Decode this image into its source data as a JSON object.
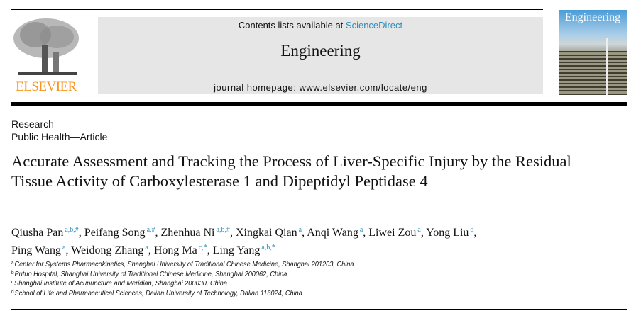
{
  "header": {
    "publisher_logo": "ELSEVIER",
    "contents_prefix": "Contents lists available at ",
    "contents_link": "ScienceDirect",
    "journal_name": "Engineering",
    "homepage": "journal homepage: www.elsevier.com/locate/eng",
    "cover_title": "Engineering",
    "link_color": "#2a8fbd",
    "logo_color": "#f7941d"
  },
  "article": {
    "section": "Research",
    "subsection": "Public Health—Article",
    "title": "Accurate Assessment and Tracking the Process of Liver-Specific Injury by the Residual Tissue Activity of Carboxylesterase 1 and Dipeptidyl Peptidase 4",
    "authors": [
      {
        "name": "Qiusha Pan",
        "aff": "a,b,#"
      },
      {
        "name": "Peifang Song",
        "aff": "a,#"
      },
      {
        "name": "Zhenhua Ni",
        "aff": "a,b,#"
      },
      {
        "name": "Xingkai Qian",
        "aff": "a"
      },
      {
        "name": "Anqi Wang",
        "aff": "a"
      },
      {
        "name": "Liwei Zou",
        "aff": "a"
      },
      {
        "name": "Yong Liu",
        "aff": "d"
      },
      {
        "name": "Ping Wang",
        "aff": "a"
      },
      {
        "name": "Weidong Zhang",
        "aff": "a"
      },
      {
        "name": "Hong Ma",
        "aff": "c,*"
      },
      {
        "name": "Ling Yang",
        "aff": "a,b,*"
      }
    ],
    "affiliations": [
      {
        "key": "a",
        "text": "Center for Systems Pharmacokinetics, Shanghai University of Traditional Chinese Medicine, Shanghai 201203, China"
      },
      {
        "key": "b",
        "text": "Putuo Hospital, Shanghai University of Traditional Chinese Medicine, Shanghai 200062, China"
      },
      {
        "key": "c",
        "text": "Shanghai Institute of Acupuncture and Meridian, Shanghai 200030, China"
      },
      {
        "key": "d",
        "text": "School of Life and Pharmaceutical Sciences, Dalian University of Technology, Dalian 116024, China"
      }
    ]
  }
}
